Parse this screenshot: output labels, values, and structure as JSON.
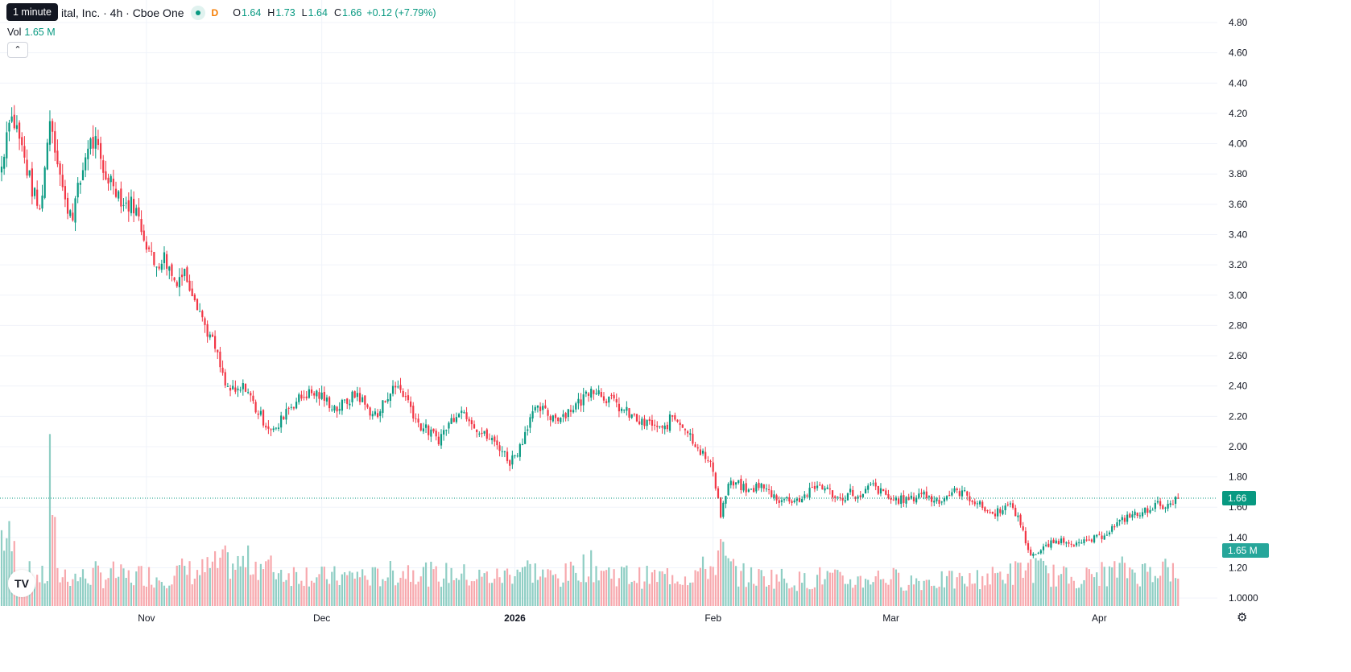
{
  "tooltip": "1 minute",
  "legend": {
    "title": "ital, Inc. · 4h · Cboe One",
    "interval_tag": "D",
    "open_label": "O",
    "open": "1.64",
    "high_label": "H",
    "high": "1.73",
    "low_label": "L",
    "low": "1.64",
    "close_label": "C",
    "close": "1.66",
    "change": "+0.12 (+7.79%)"
  },
  "volume": {
    "label": "Vol",
    "value": "1.65 M"
  },
  "collapse_icon": "chevron-up-icon",
  "logo_icon": "tradingview-logo-icon",
  "logo_text": "TV",
  "settings_icon": "gear-icon",
  "colors": {
    "up": "#089981",
    "down": "#f23645",
    "vol_up": "#8fcec4",
    "vol_down": "#f7a8ad",
    "grid": "#f0f3fa"
  },
  "chart_data": {
    "type": "candlestick",
    "interval": "4h",
    "y_ticks": [
      "4.80",
      "4.60",
      "4.40",
      "4.20",
      "4.00",
      "3.80",
      "3.60",
      "3.40",
      "3.20",
      "3.00",
      "2.80",
      "2.60",
      "2.40",
      "2.20",
      "2.00",
      "1.80",
      "1.60",
      "1.40",
      "1.20",
      "1.0000"
    ],
    "ylim": [
      0.94,
      4.88
    ],
    "x_ticks": [
      {
        "label": "Nov",
        "index": 57
      },
      {
        "label": "Dec",
        "index": 126
      },
      {
        "label": "2026",
        "index": 202
      },
      {
        "label": "Feb",
        "index": 280
      },
      {
        "label": "Mar",
        "index": 350
      },
      {
        "label": "Apr",
        "index": 432
      }
    ],
    "last_price": "1.66",
    "last_volume_label": "1.65 M",
    "last_volume_ratio": 0.35,
    "anchors": [
      [
        0,
        3.85,
        1.0
      ],
      [
        3,
        4.2,
        0.9
      ],
      [
        6,
        4.1,
        0.65
      ],
      [
        9,
        3.9,
        0.45
      ],
      [
        12,
        3.7,
        0.45
      ],
      [
        15,
        3.55,
        0.4
      ],
      [
        18,
        4.0,
        0.4
      ],
      [
        19,
        4.2,
        1.95
      ],
      [
        22,
        3.9,
        0.4
      ],
      [
        25,
        3.6,
        0.45
      ],
      [
        28,
        3.55,
        0.4
      ],
      [
        31,
        3.75,
        0.4
      ],
      [
        34,
        4.0,
        0.4
      ],
      [
        37,
        4.0,
        0.45
      ],
      [
        40,
        3.8,
        0.4
      ],
      [
        44,
        3.75,
        0.45
      ],
      [
        48,
        3.6,
        0.4
      ],
      [
        52,
        3.6,
        0.4
      ],
      [
        56,
        3.4,
        0.45
      ],
      [
        60,
        3.2,
        0.4
      ],
      [
        64,
        3.25,
        0.4
      ],
      [
        68,
        3.1,
        0.45
      ],
      [
        72,
        3.15,
        0.5
      ],
      [
        76,
        3.0,
        0.45
      ],
      [
        80,
        2.8,
        0.5
      ],
      [
        84,
        2.65,
        0.55
      ],
      [
        88,
        2.4,
        0.6
      ],
      [
        92,
        2.35,
        0.55
      ],
      [
        96,
        2.4,
        0.6
      ],
      [
        100,
        2.25,
        0.6
      ],
      [
        104,
        2.15,
        0.55
      ],
      [
        108,
        2.1,
        0.5
      ],
      [
        112,
        2.25,
        0.45
      ],
      [
        116,
        2.3,
        0.45
      ],
      [
        120,
        2.35,
        0.45
      ],
      [
        124,
        2.35,
        0.4
      ],
      [
        128,
        2.3,
        0.4
      ],
      [
        132,
        2.25,
        0.4
      ],
      [
        136,
        2.3,
        0.4
      ],
      [
        140,
        2.35,
        0.45
      ],
      [
        144,
        2.25,
        0.4
      ],
      [
        148,
        2.2,
        0.4
      ],
      [
        152,
        2.35,
        0.45
      ],
      [
        156,
        2.4,
        0.45
      ],
      [
        160,
        2.3,
        0.5
      ],
      [
        164,
        2.15,
        0.5
      ],
      [
        168,
        2.1,
        0.45
      ],
      [
        172,
        2.05,
        0.4
      ],
      [
        176,
        2.15,
        0.45
      ],
      [
        180,
        2.25,
        0.45
      ],
      [
        184,
        2.2,
        0.4
      ],
      [
        188,
        2.1,
        0.4
      ],
      [
        192,
        2.05,
        0.4
      ],
      [
        196,
        2.0,
        0.4
      ],
      [
        200,
        1.9,
        0.45
      ],
      [
        204,
        2.0,
        0.55
      ],
      [
        208,
        2.2,
        0.5
      ],
      [
        212,
        2.25,
        0.45
      ],
      [
        216,
        2.2,
        0.4
      ],
      [
        220,
        2.2,
        0.4
      ],
      [
        224,
        2.25,
        0.45
      ],
      [
        228,
        2.3,
        0.55
      ],
      [
        232,
        2.4,
        0.55
      ],
      [
        236,
        2.35,
        0.5
      ],
      [
        240,
        2.3,
        0.45
      ],
      [
        244,
        2.25,
        0.45
      ],
      [
        248,
        2.2,
        0.4
      ],
      [
        252,
        2.15,
        0.4
      ],
      [
        256,
        2.15,
        0.4
      ],
      [
        260,
        2.1,
        0.4
      ],
      [
        264,
        2.2,
        0.45
      ],
      [
        268,
        2.15,
        0.4
      ],
      [
        272,
        2.05,
        0.45
      ],
      [
        276,
        1.95,
        0.5
      ],
      [
        280,
        1.85,
        0.55
      ],
      [
        283,
        1.55,
        0.75
      ],
      [
        286,
        1.75,
        0.55
      ],
      [
        290,
        1.75,
        0.45
      ],
      [
        294,
        1.7,
        0.4
      ],
      [
        298,
        1.75,
        0.4
      ],
      [
        302,
        1.7,
        0.4
      ],
      [
        306,
        1.65,
        0.4
      ],
      [
        310,
        1.65,
        0.35
      ],
      [
        314,
        1.65,
        0.35
      ],
      [
        318,
        1.7,
        0.35
      ],
      [
        322,
        1.75,
        0.4
      ],
      [
        326,
        1.7,
        0.4
      ],
      [
        330,
        1.65,
        0.35
      ],
      [
        334,
        1.7,
        0.35
      ],
      [
        338,
        1.65,
        0.35
      ],
      [
        342,
        1.75,
        0.4
      ],
      [
        346,
        1.7,
        0.4
      ],
      [
        350,
        1.65,
        0.4
      ],
      [
        354,
        1.65,
        0.35
      ],
      [
        358,
        1.65,
        0.35
      ],
      [
        362,
        1.7,
        0.35
      ],
      [
        366,
        1.65,
        0.35
      ],
      [
        370,
        1.65,
        0.35
      ],
      [
        374,
        1.7,
        0.35
      ],
      [
        378,
        1.7,
        0.35
      ],
      [
        382,
        1.65,
        0.35
      ],
      [
        386,
        1.6,
        0.4
      ],
      [
        390,
        1.55,
        0.4
      ],
      [
        394,
        1.6,
        0.45
      ],
      [
        398,
        1.6,
        0.45
      ],
      [
        402,
        1.45,
        0.5
      ],
      [
        404,
        1.3,
        0.55
      ],
      [
        408,
        1.3,
        0.5
      ],
      [
        412,
        1.35,
        0.45
      ],
      [
        416,
        1.38,
        0.4
      ],
      [
        420,
        1.38,
        0.4
      ],
      [
        424,
        1.35,
        0.4
      ],
      [
        428,
        1.38,
        0.4
      ],
      [
        432,
        1.4,
        0.45
      ],
      [
        436,
        1.45,
        0.45
      ],
      [
        440,
        1.5,
        0.5
      ],
      [
        444,
        1.55,
        0.5
      ],
      [
        448,
        1.55,
        0.45
      ],
      [
        452,
        1.6,
        0.5
      ],
      [
        456,
        1.62,
        0.55
      ],
      [
        460,
        1.6,
        0.5
      ],
      [
        463,
        1.66,
        0.35
      ]
    ]
  }
}
